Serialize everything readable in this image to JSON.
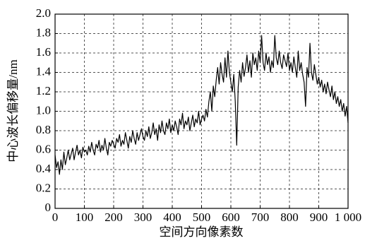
{
  "chart_data": {
    "type": "line",
    "xlabel": "空间方向像素数",
    "ylabel": "中心波长偏移量/nm",
    "color": "#000000",
    "grid": true,
    "xlim": [
      0,
      1000
    ],
    "ylim": [
      0,
      2.0
    ],
    "xticks": [
      0,
      100,
      200,
      300,
      400,
      500,
      600,
      700,
      800,
      900,
      {
        "value": 1000,
        "label": "1 000"
      }
    ],
    "yticks": [
      0,
      0.2,
      0.4,
      0.6,
      0.8,
      {
        "value": 1.0,
        "label": "1.0"
      },
      1.2,
      1.4,
      1.6,
      1.8,
      {
        "value": 2.0,
        "label": "2.0"
      }
    ],
    "x": [
      0,
      5,
      10,
      15,
      20,
      25,
      30,
      35,
      40,
      45,
      50,
      55,
      60,
      65,
      70,
      75,
      80,
      85,
      90,
      95,
      100,
      105,
      110,
      115,
      120,
      125,
      130,
      135,
      140,
      145,
      150,
      155,
      160,
      165,
      170,
      175,
      180,
      185,
      190,
      195,
      200,
      205,
      210,
      215,
      220,
      225,
      230,
      235,
      240,
      245,
      250,
      255,
      260,
      265,
      270,
      275,
      280,
      285,
      290,
      295,
      300,
      305,
      310,
      315,
      320,
      325,
      330,
      335,
      340,
      345,
      350,
      355,
      360,
      365,
      370,
      375,
      380,
      385,
      390,
      395,
      400,
      405,
      410,
      415,
      420,
      425,
      430,
      435,
      440,
      445,
      450,
      455,
      460,
      465,
      470,
      475,
      480,
      485,
      490,
      495,
      500,
      505,
      510,
      515,
      520,
      525,
      530,
      535,
      540,
      545,
      550,
      555,
      560,
      565,
      570,
      575,
      580,
      585,
      590,
      595,
      600,
      605,
      610,
      615,
      620,
      625,
      630,
      635,
      640,
      645,
      650,
      655,
      660,
      665,
      670,
      675,
      680,
      685,
      690,
      695,
      700,
      705,
      710,
      715,
      720,
      725,
      730,
      735,
      740,
      745,
      750,
      755,
      760,
      765,
      770,
      775,
      780,
      785,
      790,
      795,
      800,
      805,
      810,
      815,
      820,
      825,
      830,
      835,
      840,
      845,
      850,
      855,
      860,
      865,
      870,
      875,
      880,
      885,
      890,
      895,
      900,
      905,
      910,
      915,
      920,
      925,
      930,
      935,
      940,
      945,
      950,
      955,
      960,
      965,
      970,
      975,
      980,
      985,
      990,
      995,
      1000
    ],
    "values": [
      0.55,
      0.42,
      0.48,
      0.35,
      0.5,
      0.4,
      0.58,
      0.45,
      0.52,
      0.6,
      0.5,
      0.56,
      0.62,
      0.5,
      0.58,
      0.65,
      0.55,
      0.6,
      0.52,
      0.63,
      0.58,
      0.6,
      0.55,
      0.64,
      0.58,
      0.68,
      0.6,
      0.55,
      0.66,
      0.62,
      0.7,
      0.58,
      0.65,
      0.6,
      0.72,
      0.62,
      0.55,
      0.68,
      0.64,
      0.7,
      0.66,
      0.62,
      0.72,
      0.68,
      0.76,
      0.64,
      0.7,
      0.66,
      0.78,
      0.7,
      0.62,
      0.74,
      0.68,
      0.8,
      0.72,
      0.66,
      0.78,
      0.7,
      0.76,
      0.82,
      0.74,
      0.7,
      0.8,
      0.74,
      0.84,
      0.72,
      0.78,
      0.88,
      0.76,
      0.82,
      0.7,
      0.86,
      0.78,
      0.9,
      0.8,
      0.76,
      0.88,
      0.82,
      0.92,
      0.78,
      0.86,
      0.8,
      0.9,
      0.84,
      0.76,
      0.92,
      0.86,
      0.98,
      0.82,
      0.9,
      0.86,
      0.94,
      0.8,
      0.88,
      0.96,
      0.84,
      0.92,
      0.88,
      1.0,
      0.86,
      0.92,
      0.96,
      0.9,
      1.02,
      0.94,
      1.1,
      1.2,
      1.0,
      1.26,
      1.15,
      1.32,
      1.45,
      1.28,
      1.5,
      1.38,
      1.3,
      1.55,
      1.35,
      1.62,
      1.4,
      1.3,
      1.2,
      1.38,
      1.1,
      0.65,
      1.25,
      1.42,
      1.3,
      1.5,
      1.36,
      1.45,
      1.58,
      1.4,
      1.52,
      1.35,
      1.6,
      1.48,
      1.55,
      1.42,
      1.62,
      1.5,
      1.78,
      1.5,
      1.42,
      1.6,
      1.48,
      1.56,
      1.4,
      1.52,
      1.45,
      1.78,
      1.55,
      1.48,
      1.62,
      1.5,
      1.44,
      1.58,
      1.52,
      1.46,
      1.6,
      1.42,
      1.5,
      1.4,
      1.56,
      1.45,
      1.35,
      1.62,
      1.42,
      1.5,
      1.38,
      1.3,
      1.05,
      1.45,
      1.35,
      1.7,
      1.4,
      1.32,
      1.48,
      1.38,
      1.28,
      1.35,
      1.25,
      1.32,
      1.2,
      1.28,
      1.18,
      1.3,
      1.22,
      1.15,
      1.26,
      1.12,
      1.2,
      1.08,
      1.15,
      1.05,
      1.12,
      1.0,
      1.08,
      0.95,
      1.05,
      0.88
    ]
  }
}
